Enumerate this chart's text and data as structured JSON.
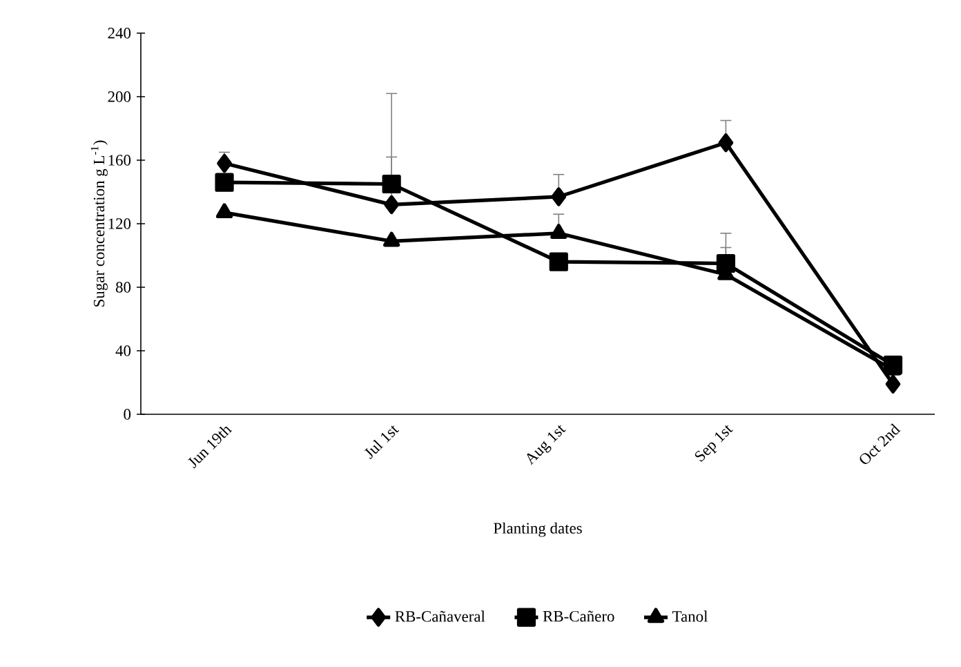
{
  "chart_data": {
    "type": "line",
    "xlabel": "Planting dates",
    "ylabel": "Sugar concentration g L$^{-1}$)",
    "categories": [
      "Jun 19th",
      "Jul 1st",
      "Aug 1st",
      "Sep 1st",
      "Oct 2nd"
    ],
    "ylim": [
      0,
      240
    ],
    "yticks": [
      0,
      40,
      80,
      120,
      160,
      200,
      240
    ],
    "legend": "bottom",
    "grid": false,
    "series": [
      {
        "name": "RB-Cañaveral",
        "color": "#000000",
        "marker": "diamond",
        "values": [
          158,
          132,
          137,
          171,
          19
        ],
        "errors": [
          [
            158,
            165
          ],
          [
            132,
            162
          ],
          [
            137,
            151
          ],
          [
            171,
            185
          ],
          null
        ]
      },
      {
        "name": "RB-Cañero",
        "color": "#000000",
        "marker": "square",
        "values": [
          146,
          145,
          96,
          95,
          31
        ],
        "errors": [
          null,
          [
            145,
            202
          ],
          null,
          [
            95,
            114
          ],
          null
        ]
      },
      {
        "name": "Tanol",
        "color": "#000000",
        "marker": "triangle",
        "values": [
          127,
          109,
          114,
          88,
          28
        ],
        "errors": [
          null,
          null,
          [
            114,
            126
          ],
          [
            88,
            105
          ],
          null
        ]
      }
    ]
  }
}
